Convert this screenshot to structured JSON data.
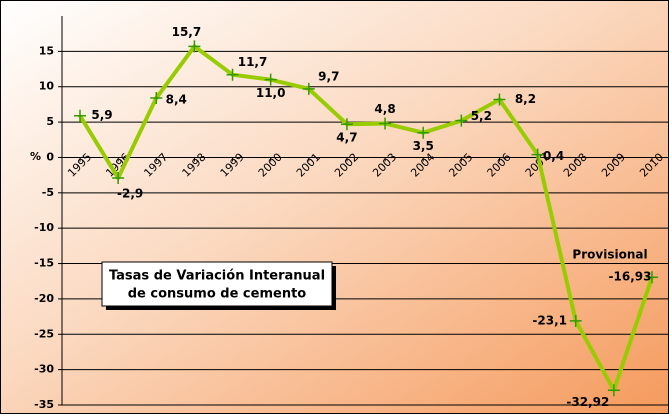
{
  "chart_data": {
    "type": "line",
    "title": [
      "Tasas de Variación Interanual",
      "de consumo de cemento"
    ],
    "y_label": "%",
    "annotation": "Provisional",
    "categories": [
      "1995",
      "1996",
      "1997",
      "1998",
      "1999",
      "2000",
      "2001",
      "2002",
      "2003",
      "2004",
      "2005",
      "2006",
      "2007",
      "2008",
      "2009",
      "2010"
    ],
    "series": [
      {
        "name": "Tasas de variación",
        "color": "#99cc00",
        "marker_color": "#339900",
        "values": [
          5.9,
          -2.9,
          8.4,
          15.7,
          11.7,
          11.0,
          9.7,
          4.7,
          4.8,
          3.5,
          5.2,
          8.2,
          0.4,
          -23.1,
          -32.92,
          -16.93
        ],
        "value_labels": [
          "5,9",
          "-2,9",
          "8,4",
          "15,7",
          "11,7",
          "11,0",
          "9,7",
          "4,7",
          "4,8",
          "3,5",
          "5,2",
          "8,2",
          "0,4",
          "-23,1",
          "-32,92",
          "-16,93"
        ]
      }
    ],
    "ylim": [
      -35,
      20
    ],
    "yticks": [
      -35,
      -30,
      -25,
      -20,
      -15,
      -10,
      -5,
      0,
      5,
      10,
      15
    ],
    "grid": true
  }
}
